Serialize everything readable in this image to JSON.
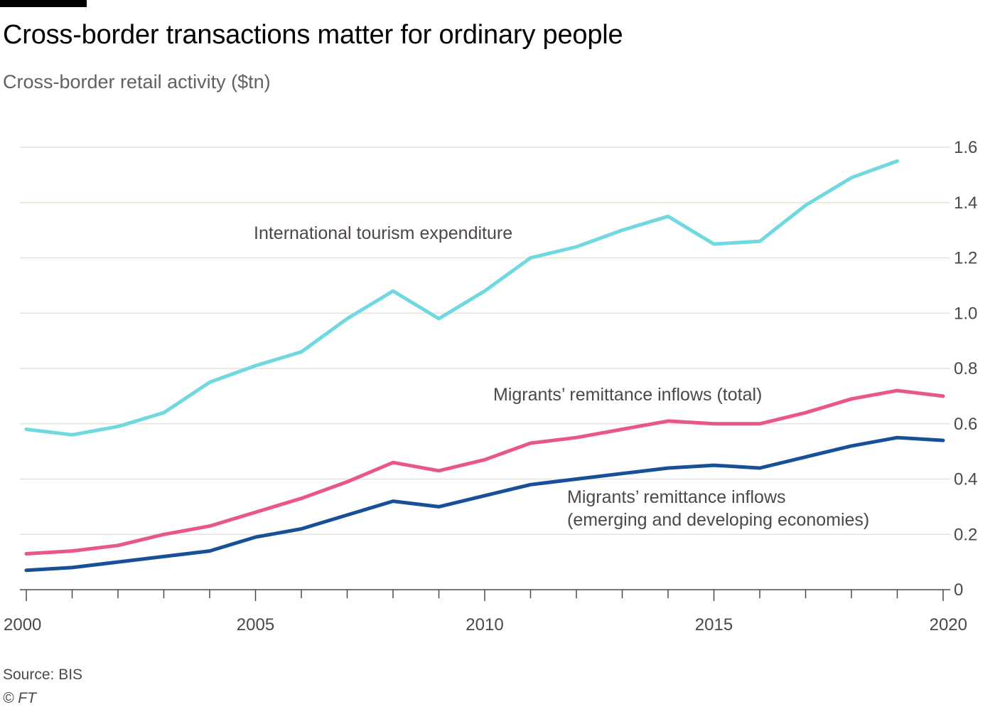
{
  "header": {
    "title": "Cross-border transactions matter for ordinary people",
    "subtitle": "Cross-border retail activity ($tn)"
  },
  "footer": {
    "source": "Source: BIS",
    "credit": "© FT"
  },
  "colors": {
    "tourism": "#6fd8e0",
    "remittance_total": "#e8568a",
    "remittance_emerging": "#174f98",
    "grid": "#e6e2d4",
    "axis": "#4d4845",
    "text": "#4d4845"
  },
  "chart_data": {
    "type": "line",
    "title": "Cross-border transactions matter for ordinary people",
    "subtitle": "Cross-border retail activity ($tn)",
    "xlabel": "",
    "ylabel": "",
    "xlim": [
      2000,
      2020
    ],
    "ylim": [
      0,
      1.6
    ],
    "y_axis_position": "right",
    "grid": true,
    "x_ticks": [
      2000,
      2005,
      2010,
      2015,
      2020
    ],
    "x_tick_labels": [
      "2000",
      "2005",
      "2010",
      "2015",
      "2020"
    ],
    "y_ticks": [
      0,
      0.2,
      0.4,
      0.6,
      0.8,
      1.0,
      1.2,
      1.4,
      1.6
    ],
    "y_tick_labels": [
      "0",
      "0.2",
      "0.4",
      "0.6",
      "0.8",
      "1.0",
      "1.2",
      "1.4",
      "1.6"
    ],
    "series": [
      {
        "key": "tourism",
        "name": "International tourism expenditure",
        "label_lines": [
          "International tourism expenditure"
        ],
        "color": "#6fd8e0",
        "x": [
          2000,
          2001,
          2002,
          2003,
          2004,
          2005,
          2006,
          2007,
          2008,
          2009,
          2010,
          2011,
          2012,
          2013,
          2014,
          2015,
          2016,
          2017,
          2018,
          2019
        ],
        "values": [
          0.58,
          0.56,
          0.59,
          0.64,
          0.75,
          0.81,
          0.86,
          0.98,
          1.08,
          0.98,
          1.08,
          1.2,
          1.24,
          1.3,
          1.35,
          1.25,
          1.26,
          1.39,
          1.49,
          1.55
        ]
      },
      {
        "key": "remittance_total",
        "name": "Migrants’ remittance inflows (total)",
        "label_lines": [
          "Migrants’ remittance inflows (total)"
        ],
        "color": "#e8568a",
        "x": [
          2000,
          2001,
          2002,
          2003,
          2004,
          2005,
          2006,
          2007,
          2008,
          2009,
          2010,
          2011,
          2012,
          2013,
          2014,
          2015,
          2016,
          2017,
          2018,
          2019,
          2020
        ],
        "values": [
          0.13,
          0.14,
          0.16,
          0.2,
          0.23,
          0.28,
          0.33,
          0.39,
          0.46,
          0.43,
          0.47,
          0.53,
          0.55,
          0.58,
          0.61,
          0.6,
          0.6,
          0.64,
          0.69,
          0.72,
          0.7
        ]
      },
      {
        "key": "remittance_emerging",
        "name": "Migrants’ remittance inflows (emerging and developing economies)",
        "label_lines": [
          "Migrants’ remittance inflows",
          "(emerging and developing economies)"
        ],
        "color": "#174f98",
        "x": [
          2000,
          2001,
          2002,
          2003,
          2004,
          2005,
          2006,
          2007,
          2008,
          2009,
          2010,
          2011,
          2012,
          2013,
          2014,
          2015,
          2016,
          2017,
          2018,
          2019,
          2020
        ],
        "values": [
          0.07,
          0.08,
          0.1,
          0.12,
          0.14,
          0.19,
          0.22,
          0.27,
          0.32,
          0.3,
          0.34,
          0.38,
          0.4,
          0.42,
          0.44,
          0.45,
          0.44,
          0.48,
          0.52,
          0.55,
          0.54
        ]
      }
    ]
  }
}
